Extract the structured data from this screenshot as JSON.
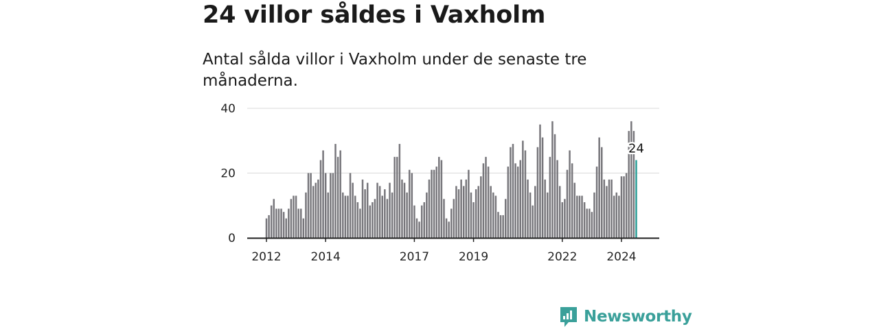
{
  "title": "24 villor såldes i Vaxholm",
  "subtitle": "Antal sålda villor i Vaxholm under de senaste tre månaderna.",
  "brand": {
    "name": "Newsworthy",
    "icon": "newsworthy-logo-icon",
    "color": "#3aa09a"
  },
  "colors": {
    "bar": "#77767b",
    "highlight": "#2a9d96",
    "grid": "#d9d9d9",
    "axis": "#222222"
  },
  "chart_data": {
    "type": "bar",
    "title": "24 villor såldes i Vaxholm",
    "xlabel": "",
    "ylabel": "",
    "ylim": [
      0,
      40
    ],
    "yticks": [
      0,
      20,
      40
    ],
    "xticks": [
      {
        "label": "2012",
        "index": 0
      },
      {
        "label": "2014",
        "index": 24
      },
      {
        "label": "2017",
        "index": 60
      },
      {
        "label": "2019",
        "index": 84
      },
      {
        "label": "2022",
        "index": 120
      },
      {
        "label": "2024",
        "index": 144
      }
    ],
    "start": "2012-01",
    "frequency": "monthly",
    "values": [
      6,
      7,
      10,
      12,
      9,
      9,
      9,
      8,
      6,
      9,
      12,
      13,
      13,
      9,
      9,
      6,
      14,
      20,
      20,
      16,
      17,
      18,
      24,
      27,
      20,
      14,
      20,
      20,
      29,
      25,
      27,
      14,
      13,
      13,
      20,
      17,
      13,
      11,
      9,
      18,
      15,
      17,
      10,
      11,
      12,
      17,
      16,
      13,
      15,
      12,
      17,
      14,
      25,
      25,
      29,
      18,
      17,
      14,
      21,
      20,
      10,
      6,
      5,
      10,
      11,
      14,
      18,
      21,
      21,
      22,
      25,
      24,
      12,
      6,
      5,
      9,
      12,
      16,
      15,
      18,
      16,
      18,
      21,
      14,
      11,
      15,
      16,
      19,
      23,
      25,
      22,
      16,
      14,
      13,
      8,
      7,
      7,
      12,
      22,
      28,
      29,
      23,
      22,
      24,
      30,
      27,
      18,
      14,
      10,
      16,
      28,
      35,
      31,
      18,
      14,
      25,
      36,
      32,
      24,
      16,
      11,
      12,
      21,
      27,
      23,
      17,
      13,
      13,
      13,
      11,
      9,
      9,
      8,
      14,
      22,
      31,
      28,
      18,
      16,
      18,
      18,
      13,
      14,
      13,
      19,
      19,
      20,
      33,
      36,
      33,
      24
    ],
    "highlight_label": "24"
  }
}
